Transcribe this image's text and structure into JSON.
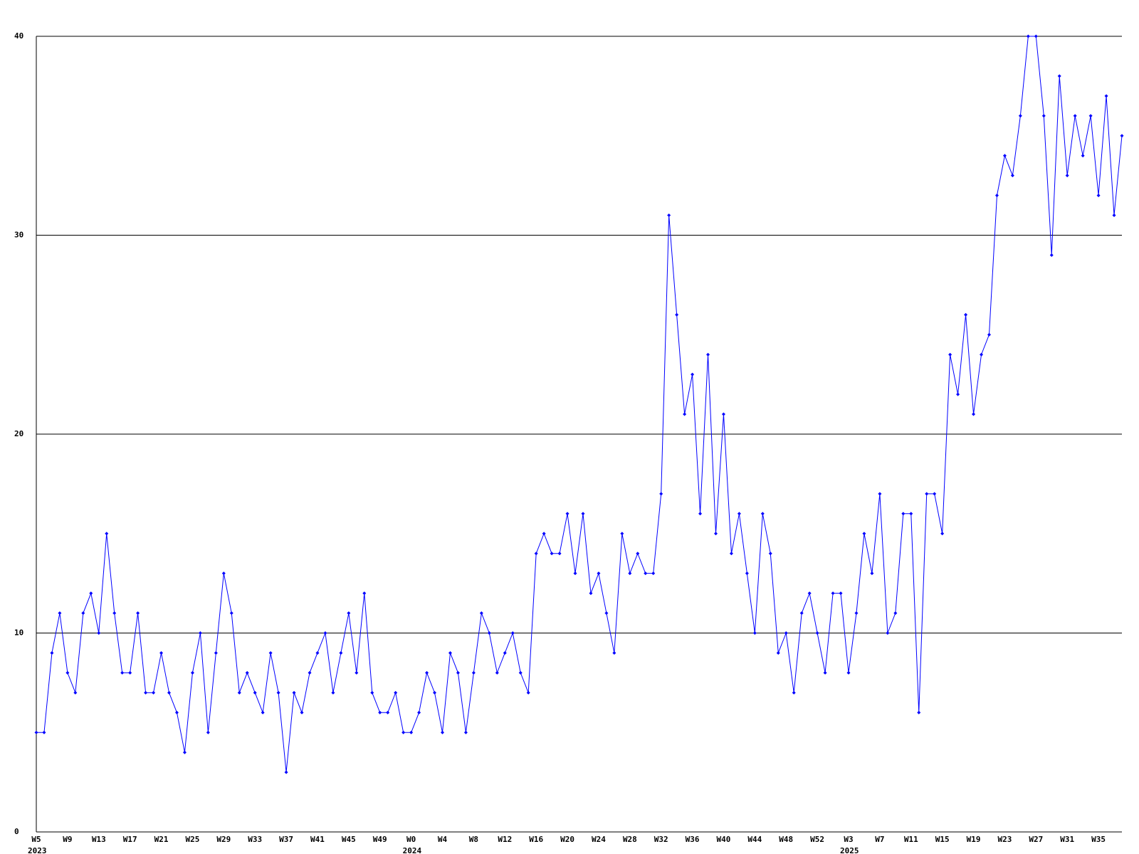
{
  "chart_data": {
    "type": "line",
    "categories": [
      "W5",
      null,
      null,
      null,
      "W9",
      null,
      null,
      null,
      "W13",
      null,
      null,
      null,
      "W17",
      null,
      null,
      null,
      "W21",
      null,
      null,
      null,
      "W25",
      null,
      null,
      null,
      "W29",
      null,
      null,
      null,
      "W33",
      null,
      null,
      null,
      "W37",
      null,
      null,
      null,
      "W41",
      null,
      null,
      null,
      "W45",
      null,
      null,
      null,
      "W49",
      null,
      null,
      null,
      "W0",
      null,
      null,
      null,
      "W4",
      null,
      null,
      null,
      "W8",
      null,
      null,
      null,
      "W12",
      null,
      null,
      null,
      "W16",
      null,
      null,
      null,
      "W20",
      null,
      null,
      null,
      "W24",
      null,
      null,
      null,
      "W28",
      null,
      null,
      null,
      "W32",
      null,
      null,
      null,
      "W36",
      null,
      null,
      null,
      "W40",
      null,
      null,
      null,
      "W44",
      null,
      null,
      null,
      "W48",
      null,
      null,
      null,
      "W52",
      null,
      null,
      null,
      "W3",
      null,
      null,
      null,
      "W7",
      null,
      null,
      null,
      "W11",
      null,
      null,
      null,
      "W15",
      null,
      null,
      null,
      "W19",
      null,
      null,
      null,
      "W23",
      null,
      null,
      null,
      "W27",
      null,
      null,
      null,
      "W31",
      null,
      null,
      null,
      "W35",
      null,
      null,
      null
    ],
    "category_years": [
      "2023",
      null,
      null,
      null,
      null,
      null,
      null,
      null,
      null,
      null,
      null,
      null,
      null,
      null,
      null,
      null,
      null,
      null,
      null,
      null,
      null,
      null,
      null,
      null,
      null,
      null,
      null,
      null,
      null,
      null,
      null,
      null,
      null,
      null,
      null,
      null,
      null,
      null,
      null,
      null,
      null,
      null,
      null,
      null,
      null,
      null,
      null,
      null,
      "2024",
      null,
      null,
      null,
      null,
      null,
      null,
      null,
      null,
      null,
      null,
      null,
      null,
      null,
      null,
      null,
      null,
      null,
      null,
      null,
      null,
      null,
      null,
      null,
      null,
      null,
      null,
      null,
      null,
      null,
      null,
      null,
      null,
      null,
      null,
      null,
      null,
      null,
      null,
      null,
      null,
      null,
      null,
      null,
      null,
      null,
      null,
      null,
      null,
      null,
      null,
      null,
      null,
      null,
      null,
      null,
      "2025",
      null,
      null,
      null,
      null,
      null,
      null,
      null,
      null,
      null,
      null,
      null,
      null,
      null,
      null,
      null,
      null,
      null,
      null,
      null,
      null,
      null,
      null,
      null,
      null,
      null,
      null,
      null,
      null,
      null,
      null,
      null,
      null,
      null,
      null,
      null
    ],
    "values": [
      5,
      5,
      9,
      11,
      8,
      7,
      11,
      12,
      10,
      15,
      11,
      8,
      8,
      11,
      7,
      7,
      9,
      7,
      6,
      4,
      8,
      10,
      5,
      9,
      13,
      11,
      7,
      8,
      7,
      6,
      9,
      7,
      3,
      7,
      6,
      8,
      9,
      10,
      7,
      9,
      11,
      8,
      12,
      7,
      6,
      6,
      7,
      5,
      5,
      6,
      8,
      7,
      5,
      9,
      8,
      5,
      8,
      11,
      10,
      8,
      9,
      10,
      8,
      7,
      14,
      15,
      14,
      14,
      16,
      13,
      16,
      12,
      13,
      11,
      9,
      15,
      13,
      14,
      13,
      13,
      17,
      31,
      26,
      21,
      23,
      16,
      24,
      15,
      21,
      14,
      16,
      13,
      10,
      16,
      14,
      9,
      10,
      7,
      11,
      12,
      10,
      8,
      12,
      12,
      8,
      11,
      15,
      13,
      17,
      10,
      11,
      16,
      16,
      6,
      17,
      17,
      15,
      24,
      22,
      26,
      21,
      24,
      25,
      32,
      34,
      33,
      36,
      40,
      40,
      36,
      29,
      38,
      33,
      36,
      34,
      36,
      32,
      37,
      31,
      35
    ],
    "color": "#0000ff",
    "markers": true,
    "grid": true,
    "ylim": [
      0,
      40
    ],
    "yticks": [
      0,
      10,
      20,
      30,
      40
    ]
  }
}
